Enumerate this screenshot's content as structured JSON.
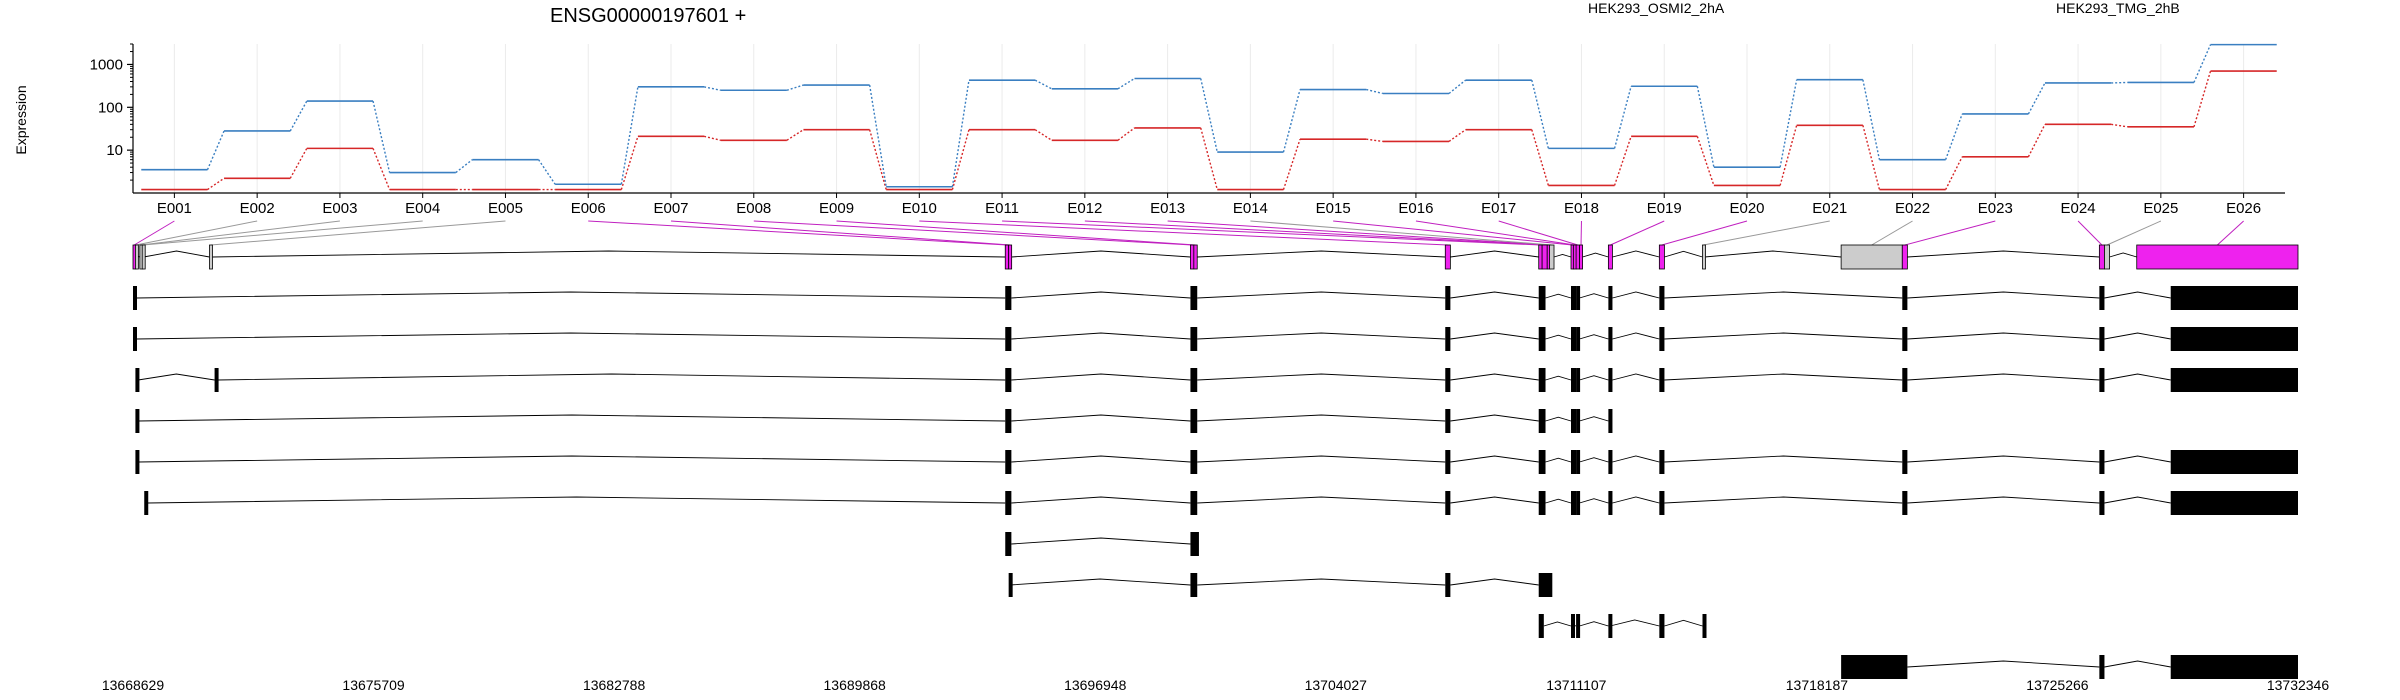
{
  "chart_data": {
    "type": "line",
    "title": "ENSG00000197601 +",
    "ylabel": "Expression",
    "yscale": "log",
    "ylim": [
      1,
      3000
    ],
    "yticks": [
      10,
      100,
      1000
    ],
    "ytick_labels": [
      "10",
      "100",
      "1000"
    ],
    "grid": true,
    "legend_placement": "top",
    "categories": [
      "E001",
      "E002",
      "E003",
      "E004",
      "E005",
      "E006",
      "E007",
      "E008",
      "E009",
      "E010",
      "E011",
      "E012",
      "E013",
      "E014",
      "E015",
      "E016",
      "E017",
      "E018",
      "E019",
      "E020",
      "E021",
      "E022",
      "E023",
      "E024",
      "E025",
      "E026"
    ],
    "series": [
      {
        "name": "HEK293_OSMI2_2hA",
        "color": "#d62728",
        "values": [
          1.2,
          2.2,
          11,
          1.2,
          1.2,
          1.2,
          21,
          17,
          30,
          1.2,
          30,
          17,
          33,
          1.2,
          18,
          16,
          30,
          1.5,
          21,
          1.5,
          38,
          1.2,
          7,
          40,
          35,
          700
        ]
      },
      {
        "name": "HEK293_TMG_2hB",
        "color": "#3a7fc1",
        "values": [
          3.5,
          28,
          140,
          3,
          6,
          1.6,
          300,
          250,
          330,
          1.4,
          430,
          270,
          470,
          9,
          260,
          210,
          430,
          11,
          310,
          4,
          440,
          6,
          70,
          370,
          380,
          2900
        ]
      }
    ],
    "gene_model": {
      "coordinate_range": [
        13668629,
        13732346
      ],
      "coordinate_ticks": [
        13668629,
        13675709,
        13682788,
        13689868,
        13696948,
        13704027,
        13711107,
        13718187,
        13725266,
        13732346
      ],
      "coordinate_tick_labels": [
        "13668629",
        "13675709",
        "13682788",
        "13689868",
        "13696948",
        "13704027",
        "13711107",
        "13718187",
        "13725266",
        "13732346"
      ],
      "exon_color_significant": "#ee22ee",
      "exon_color_nonsignificant": "#cccccc",
      "exons": [
        {
          "id": "E001",
          "start": 13668629,
          "end": 13668700,
          "significant": true
        },
        {
          "id": "E002",
          "start": 13668700,
          "end": 13668730,
          "significant": false
        },
        {
          "id": "E003",
          "start": 13668830,
          "end": 13668900,
          "significant": false
        },
        {
          "id": "E004",
          "start": 13668900,
          "end": 13668940,
          "significant": false
        },
        {
          "id": "E005",
          "start": 13670880,
          "end": 13670960,
          "significant": false
        },
        {
          "id": "E006",
          "start": 13694300,
          "end": 13694400,
          "significant": true
        },
        {
          "id": "E007",
          "start": 13694400,
          "end": 13694480,
          "significant": true
        },
        {
          "id": "E008",
          "start": 13699750,
          "end": 13699850,
          "significant": true
        },
        {
          "id": "E009",
          "start": 13699850,
          "end": 13699950,
          "significant": true
        },
        {
          "id": "E010",
          "start": 13707250,
          "end": 13707400,
          "significant": true
        },
        {
          "id": "E011",
          "start": 13710000,
          "end": 13710100,
          "significant": true
        },
        {
          "id": "E012",
          "start": 13710100,
          "end": 13710250,
          "significant": true
        },
        {
          "id": "E013",
          "start": 13710250,
          "end": 13710320,
          "significant": true
        },
        {
          "id": "E014",
          "start": 13710320,
          "end": 13710450,
          "significant": false
        },
        {
          "id": "E015",
          "start": 13710950,
          "end": 13711020,
          "significant": true
        },
        {
          "id": "E016",
          "start": 13711020,
          "end": 13711100,
          "significant": true
        },
        {
          "id": "E017",
          "start": 13711100,
          "end": 13711200,
          "significant": true
        },
        {
          "id": "E018",
          "start": 13711200,
          "end": 13711290,
          "significant": true
        },
        {
          "id": "E019",
          "start": 13712050,
          "end": 13712170,
          "significant": true
        },
        {
          "id": "E020",
          "start": 13713550,
          "end": 13713700,
          "significant": true
        },
        {
          "id": "E021",
          "start": 13714820,
          "end": 13714880,
          "significant": false
        },
        {
          "id": "E022",
          "start": 13718900,
          "end": 13720700,
          "significant": false
        },
        {
          "id": "E023",
          "start": 13720700,
          "end": 13720850,
          "significant": true
        },
        {
          "id": "E024",
          "start": 13726500,
          "end": 13726650,
          "significant": true
        },
        {
          "id": "E025",
          "start": 13726650,
          "end": 13726800,
          "significant": false
        },
        {
          "id": "E026",
          "start": 13727600,
          "end": 13732346,
          "significant": true
        }
      ],
      "transcripts": [
        {
          "exons": [
            [
              13668629,
              13668730
            ],
            [
              13694300,
              13694480
            ],
            [
              13699750,
              13699950
            ],
            [
              13707250,
              13707400
            ],
            [
              13710000,
              13710200
            ],
            [
              13710950,
              13711100
            ],
            [
              13711100,
              13711200
            ],
            [
              13712050,
              13712170
            ],
            [
              13713550,
              13713700
            ],
            [
              13720700,
              13720850
            ],
            [
              13726500,
              13726650
            ],
            [
              13728600,
              13732346
            ]
          ]
        },
        {
          "exons": [
            [
              13668629,
              13668730
            ],
            [
              13694300,
              13694480
            ],
            [
              13699750,
              13699950
            ],
            [
              13707250,
              13707400
            ],
            [
              13710000,
              13710200
            ],
            [
              13710950,
              13711100
            ],
            [
              13711100,
              13711200
            ],
            [
              13712050,
              13712170
            ],
            [
              13713550,
              13713700
            ],
            [
              13720700,
              13720850
            ],
            [
              13726500,
              13726650
            ],
            [
              13728600,
              13732346
            ]
          ]
        },
        {
          "exons": [
            [
              13668700,
              13668780
            ],
            [
              13671030,
              13671120
            ],
            [
              13694300,
              13694480
            ],
            [
              13699750,
              13699950
            ],
            [
              13707250,
              13707400
            ],
            [
              13710000,
              13710200
            ],
            [
              13710950,
              13711100
            ],
            [
              13711100,
              13711200
            ],
            [
              13712050,
              13712170
            ],
            [
              13713550,
              13713700
            ],
            [
              13720700,
              13720850
            ],
            [
              13726500,
              13726650
            ],
            [
              13728600,
              13732346
            ]
          ]
        },
        {
          "exons": [
            [
              13668700,
              13668780
            ],
            [
              13694300,
              13694480
            ],
            [
              13699750,
              13699950
            ],
            [
              13707250,
              13707400
            ],
            [
              13710000,
              13710200
            ],
            [
              13710950,
              13711100
            ],
            [
              13711100,
              13711200
            ],
            [
              13712050,
              13712170
            ]
          ]
        },
        {
          "exons": [
            [
              13668700,
              13668780
            ],
            [
              13694300,
              13694480
            ],
            [
              13699750,
              13699950
            ],
            [
              13707250,
              13707400
            ],
            [
              13710000,
              13710200
            ],
            [
              13710950,
              13711100
            ],
            [
              13711100,
              13711200
            ],
            [
              13712050,
              13712170
            ],
            [
              13713550,
              13713700
            ],
            [
              13720700,
              13720850
            ],
            [
              13726500,
              13726650
            ],
            [
              13728600,
              13732346
            ]
          ]
        },
        {
          "exons": [
            [
              13668960,
              13669060
            ],
            [
              13694300,
              13694480
            ],
            [
              13699750,
              13699950
            ],
            [
              13707250,
              13707400
            ],
            [
              13710000,
              13710200
            ],
            [
              13710950,
              13711100
            ],
            [
              13711100,
              13711200
            ],
            [
              13712050,
              13712170
            ],
            [
              13713550,
              13713700
            ],
            [
              13720700,
              13720850
            ],
            [
              13726500,
              13726650
            ],
            [
              13728600,
              13732346
            ]
          ]
        },
        {
          "exons": [
            [
              13694300,
              13694480
            ],
            [
              13699750,
              13700000
            ]
          ]
        },
        {
          "exons": [
            [
              13694400,
              13694430
            ],
            [
              13699750,
              13699950
            ],
            [
              13707250,
              13707400
            ],
            [
              13710000,
              13710400
            ]
          ]
        },
        {
          "exons": [
            [
              13710000,
              13710150
            ],
            [
              13710950,
              13711050
            ],
            [
              13711100,
              13711200
            ],
            [
              13712050,
              13712100
            ],
            [
              13713550,
              13713700
            ],
            [
              13714820,
              13714860
            ]
          ]
        },
        {
          "exons": [
            [
              13718900,
              13720850
            ],
            [
              13726500,
              13726650
            ],
            [
              13728600,
              13732346
            ]
          ]
        }
      ]
    }
  }
}
